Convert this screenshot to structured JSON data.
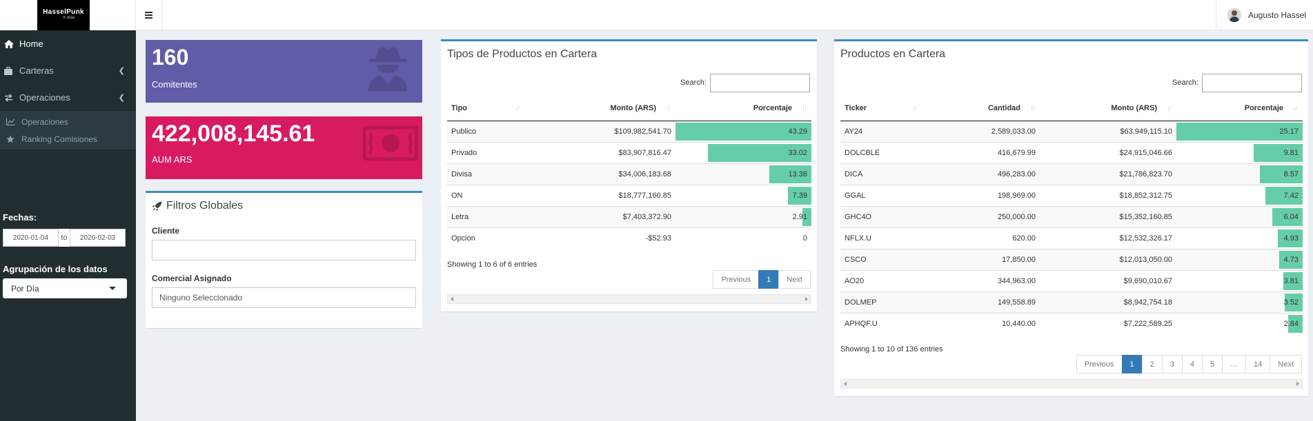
{
  "header": {
    "logo_line1": "HasselPunk",
    "logo_line2": "K-Shop",
    "user_name": "Augusto Hassel"
  },
  "sidebar": {
    "items": [
      {
        "label": "Home",
        "icon": "home-icon"
      },
      {
        "label": "Carteras",
        "icon": "briefcase-icon"
      },
      {
        "label": "Operaciones",
        "icon": "exchange-icon"
      }
    ],
    "subitems": [
      {
        "label": "Operaciones",
        "icon": "chart-line-icon"
      },
      {
        "label": "Ranking Comisiones",
        "icon": "star-icon"
      }
    ],
    "fechas_label": "Fechas:",
    "date_from": "2020-01-04",
    "date_to_sep": "to",
    "date_to": "2020-02-03",
    "agrupacion_label": "Agrupación de los datos",
    "agrupacion_value": "Por Día"
  },
  "info_boxes": [
    {
      "number": "160",
      "label": "Comitentes",
      "icon": "user-secret-icon",
      "color": "#605ca8"
    },
    {
      "number": "422,008,145.61",
      "label": "AUM ARS",
      "icon": "money-icon",
      "color": "#d81b60"
    }
  ],
  "filtros": {
    "title": "Filtros Globales",
    "cliente_label": "Cliente",
    "cliente_value": "",
    "comercial_label": "Comercial Asignado",
    "comercial_value": "Ninguno Seleccionado"
  },
  "tipos": {
    "title": "Tipos de Productos en Cartera",
    "search_label": "Search:",
    "columns": [
      "Tipo",
      "Monto (ARS)",
      "Porcentaje"
    ],
    "rows": [
      {
        "tipo": "Publico",
        "monto": "$109,982,541.70",
        "pct": "43.29",
        "pct_value": 43.29
      },
      {
        "tipo": "Privado",
        "monto": "$83,907,816.47",
        "pct": "33.02",
        "pct_value": 33.02
      },
      {
        "tipo": "Divisa",
        "monto": "$34,006,183.68",
        "pct": "13.38",
        "pct_value": 13.38
      },
      {
        "tipo": "ON",
        "monto": "$18,777,160.85",
        "pct": "7.39",
        "pct_value": 7.39
      },
      {
        "tipo": "Letra",
        "monto": "$7,403,372.90",
        "pct": "2.91",
        "pct_value": 2.91
      },
      {
        "tipo": "Opcion",
        "monto": "-$52.93",
        "pct": "0",
        "pct_value": 0
      }
    ],
    "info": "Showing 1 to 6 of 6 entries",
    "pager": [
      "Previous",
      "1",
      "Next"
    ]
  },
  "productos": {
    "title": "Productos en Cartera",
    "search_label": "Search:",
    "columns": [
      "Ticker",
      "Cantidad",
      "Monto (ARS)",
      "Porcentaje"
    ],
    "rows": [
      {
        "ticker": "AY24",
        "cantidad": "2,589,033.00",
        "monto": "$63,949,115.10",
        "pct": "25.17",
        "pct_value": 25.17
      },
      {
        "ticker": "DOLCBLE",
        "cantidad": "416,679.99",
        "monto": "$24,915,046.66",
        "pct": "9.81",
        "pct_value": 9.81
      },
      {
        "ticker": "DICA",
        "cantidad": "496,283.00",
        "monto": "$21,786,823.70",
        "pct": "8.57",
        "pct_value": 8.57
      },
      {
        "ticker": "GGAL",
        "cantidad": "198,969.00",
        "monto": "$18,852,312.75",
        "pct": "7.42",
        "pct_value": 7.42
      },
      {
        "ticker": "GHC4O",
        "cantidad": "250,000.00",
        "monto": "$15,352,160.85",
        "pct": "6.04",
        "pct_value": 6.04
      },
      {
        "ticker": "NFLX.U",
        "cantidad": "620.00",
        "monto": "$12,532,326.17",
        "pct": "4.93",
        "pct_value": 4.93
      },
      {
        "ticker": "CSCO",
        "cantidad": "17,850.00",
        "monto": "$12,013,050.00",
        "pct": "4.73",
        "pct_value": 4.73
      },
      {
        "ticker": "AO20",
        "cantidad": "344,963.00",
        "monto": "$9,690,010.67",
        "pct": "3.81",
        "pct_value": 3.81
      },
      {
        "ticker": "DOLMEP",
        "cantidad": "149,558.89",
        "monto": "$8,942,754.18",
        "pct": "3.52",
        "pct_value": 3.52
      },
      {
        "ticker": "APHQF.U",
        "cantidad": "10,440.00",
        "monto": "$7,222,589.25",
        "pct": "2.84",
        "pct_value": 2.84
      }
    ],
    "info": "Showing 1 to 10 of 136 entries",
    "pager": [
      "Previous",
      "1",
      "2",
      "3",
      "4",
      "5",
      "…",
      "14",
      "Next"
    ]
  },
  "colors": {
    "bar": "#66cdaa",
    "accent": "#3c8dbc",
    "sidebar_bg": "#222d32"
  }
}
